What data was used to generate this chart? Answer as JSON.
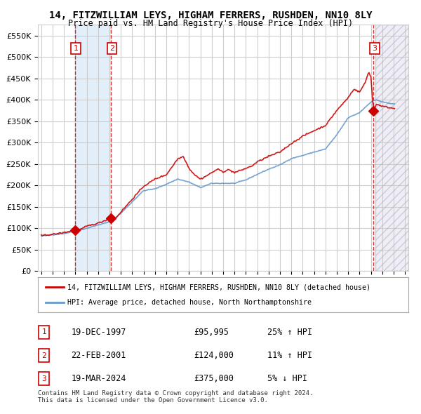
{
  "title": "14, FITZWILLIAM LEYS, HIGHAM FERRERS, RUSHDEN, NN10 8LY",
  "subtitle": "Price paid vs. HM Land Registry's House Price Index (HPI)",
  "xlim_start": 1995.0,
  "xlim_end": 2027.0,
  "ylim": [
    0,
    575000
  ],
  "yticks": [
    0,
    50000,
    100000,
    150000,
    200000,
    250000,
    300000,
    350000,
    400000,
    450000,
    500000,
    550000
  ],
  "xticks": [
    1995,
    1996,
    1997,
    1998,
    1999,
    2000,
    2001,
    2002,
    2003,
    2004,
    2005,
    2006,
    2007,
    2008,
    2009,
    2010,
    2011,
    2012,
    2013,
    2014,
    2015,
    2016,
    2017,
    2018,
    2019,
    2020,
    2021,
    2022,
    2023,
    2024,
    2025,
    2026,
    2027
  ],
  "sales": [
    {
      "label": "1",
      "date": "19-DEC-1997",
      "year": 1997.96,
      "price": 95995,
      "hpi_pct": "25% ↑ HPI"
    },
    {
      "label": "2",
      "date": "22-FEB-2001",
      "year": 2001.14,
      "price": 124000,
      "hpi_pct": "11% ↑ HPI"
    },
    {
      "label": "3",
      "date": "19-MAR-2024",
      "year": 2024.22,
      "price": 375000,
      "hpi_pct": "5% ↓ HPI"
    }
  ],
  "legend_line1": "14, FITZWILLIAM LEYS, HIGHAM FERRERS, RUSHDEN, NN10 8LY (detached house)",
  "legend_line2": "HPI: Average price, detached house, North Northamptonshire",
  "footer": "Contains HM Land Registry data © Crown copyright and database right 2024.\nThis data is licensed under the Open Government Licence v3.0.",
  "sale_color": "#cc0000",
  "hpi_color": "#6699cc",
  "bg_color": "#ffffff",
  "grid_color": "#cccccc",
  "hatch_color": "#aaaacc",
  "hpi_anchors": [
    [
      1995.0,
      82000
    ],
    [
      1996.0,
      85000
    ],
    [
      1997.0,
      88000
    ],
    [
      1998.0,
      93000
    ],
    [
      1999.0,
      100000
    ],
    [
      2000.0,
      108000
    ],
    [
      2001.0,
      115000
    ],
    [
      2002.0,
      135000
    ],
    [
      2003.0,
      162000
    ],
    [
      2004.0,
      188000
    ],
    [
      2005.0,
      192000
    ],
    [
      2006.0,
      203000
    ],
    [
      2007.0,
      215000
    ],
    [
      2008.0,
      208000
    ],
    [
      2009.0,
      195000
    ],
    [
      2010.0,
      205000
    ],
    [
      2011.0,
      205000
    ],
    [
      2012.0,
      205000
    ],
    [
      2013.0,
      213000
    ],
    [
      2014.0,
      226000
    ],
    [
      2015.0,
      238000
    ],
    [
      2016.0,
      248000
    ],
    [
      2017.0,
      263000
    ],
    [
      2018.0,
      270000
    ],
    [
      2019.0,
      278000
    ],
    [
      2020.0,
      285000
    ],
    [
      2021.0,
      318000
    ],
    [
      2022.0,
      358000
    ],
    [
      2023.0,
      370000
    ],
    [
      2024.0,
      395000
    ],
    [
      2024.5,
      400000
    ],
    [
      2025.0,
      395000
    ],
    [
      2026.0,
      390000
    ]
  ],
  "prop_anchors": [
    [
      1995.0,
      83000
    ],
    [
      1996.0,
      86000
    ],
    [
      1997.0,
      90000
    ],
    [
      1997.96,
      95995
    ],
    [
      1998.5,
      98000
    ],
    [
      1999.0,
      105000
    ],
    [
      2000.0,
      112000
    ],
    [
      2001.14,
      124000
    ],
    [
      2001.5,
      122000
    ],
    [
      2002.0,
      138000
    ],
    [
      2003.0,
      168000
    ],
    [
      2004.0,
      198000
    ],
    [
      2005.0,
      215000
    ],
    [
      2006.0,
      225000
    ],
    [
      2007.0,
      262000
    ],
    [
      2007.5,
      268000
    ],
    [
      2008.0,
      240000
    ],
    [
      2008.5,
      225000
    ],
    [
      2009.0,
      215000
    ],
    [
      2009.5,
      222000
    ],
    [
      2010.0,
      230000
    ],
    [
      2010.5,
      238000
    ],
    [
      2011.0,
      232000
    ],
    [
      2011.5,
      237000
    ],
    [
      2012.0,
      230000
    ],
    [
      2012.5,
      235000
    ],
    [
      2013.0,
      240000
    ],
    [
      2013.5,
      245000
    ],
    [
      2014.0,
      255000
    ],
    [
      2015.0,
      268000
    ],
    [
      2016.0,
      278000
    ],
    [
      2017.0,
      298000
    ],
    [
      2018.0,
      315000
    ],
    [
      2019.0,
      328000
    ],
    [
      2020.0,
      340000
    ],
    [
      2021.0,
      375000
    ],
    [
      2022.0,
      405000
    ],
    [
      2022.5,
      425000
    ],
    [
      2023.0,
      418000
    ],
    [
      2023.5,
      440000
    ],
    [
      2023.8,
      465000
    ],
    [
      2024.0,
      455000
    ],
    [
      2024.22,
      375000
    ],
    [
      2024.5,
      390000
    ],
    [
      2025.0,
      385000
    ],
    [
      2026.0,
      380000
    ]
  ],
  "future_start": 2024.4,
  "shade_start": 1997.96,
  "shade_end": 2001.14
}
